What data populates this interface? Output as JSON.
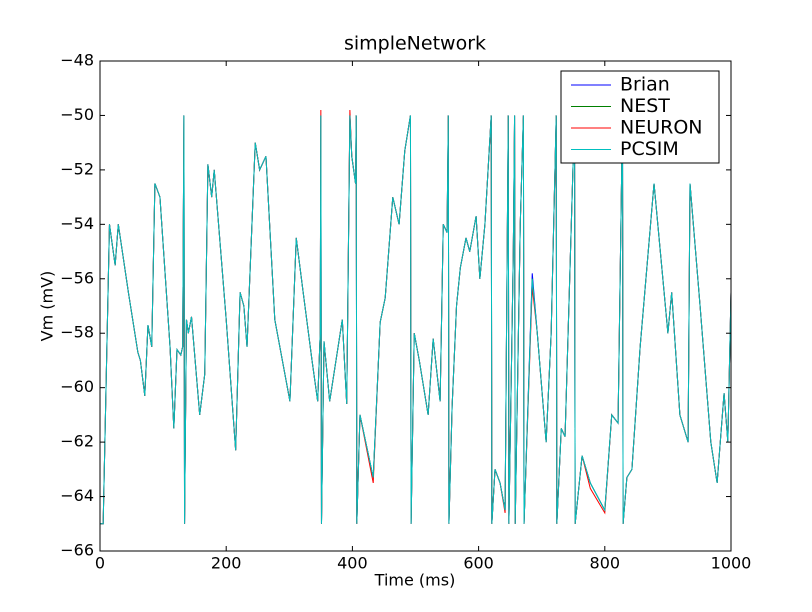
{
  "chart_data": {
    "type": "line",
    "title": "simpleNetwork",
    "x_label": "Time (ms)",
    "y_label": "Vm (mV)",
    "xlim": [
      0,
      1000
    ],
    "ylim": [
      -66,
      -48
    ],
    "xticks": [
      0,
      200,
      400,
      600,
      800,
      1000
    ],
    "yticks": [
      {
        "value": -66,
        "label": "−66"
      },
      {
        "value": -64,
        "label": "−64"
      },
      {
        "value": -62,
        "label": "−62"
      },
      {
        "value": -60,
        "label": "−60"
      },
      {
        "value": -58,
        "label": "−58"
      },
      {
        "value": -56,
        "label": "−56"
      },
      {
        "value": -54,
        "label": "−54"
      },
      {
        "value": -52,
        "label": "−52"
      },
      {
        "value": -50,
        "label": "−50"
      },
      {
        "value": -48,
        "label": "−48"
      }
    ],
    "legend": "upper right",
    "x": [
      0,
      5,
      15,
      24,
      29,
      45,
      60,
      64,
      71,
      76,
      82,
      87,
      95,
      111,
      117,
      122,
      128,
      131,
      133,
      134,
      137,
      140,
      145,
      158,
      166,
      171,
      177,
      181,
      200,
      215,
      222,
      228,
      233,
      246,
      253,
      263,
      277,
      301,
      311,
      322,
      336,
      345,
      349,
      350,
      351,
      355,
      364,
      372,
      384,
      391,
      396,
      399,
      405,
      406,
      407,
      412,
      433,
      444,
      452,
      464,
      474,
      483,
      492,
      493,
      498,
      506,
      520,
      528,
      539,
      544,
      550,
      552,
      553,
      558,
      565,
      571,
      580,
      586,
      596,
      602,
      610,
      620,
      621,
      626,
      634,
      642,
      647,
      648,
      655,
      657,
      658,
      666,
      671,
      672,
      685,
      693,
      707,
      715,
      723,
      724,
      731,
      737,
      752,
      753,
      764,
      777,
      800,
      811,
      821,
      828,
      829,
      835,
      843,
      856,
      878,
      888,
      900,
      906,
      919,
      932,
      935,
      951,
      968,
      978,
      989,
      995,
      1000
    ],
    "series": [
      {
        "name": "Brian",
        "color": "#0000ff",
        "values": [
          -65,
          -65,
          -54,
          -55.5,
          -54,
          -56.5,
          -58.7,
          -59,
          -60.3,
          -57.7,
          -58.5,
          -52.5,
          -53,
          -58.5,
          -61.5,
          -58.6,
          -58.8,
          -58.5,
          -50,
          -65,
          -57.5,
          -58,
          -57.4,
          -61,
          -59.5,
          -51.8,
          -53,
          -52,
          -57.5,
          -62.3,
          -56.5,
          -57,
          -58.5,
          -51,
          -52,
          -51.5,
          -57.5,
          -60.5,
          -54.5,
          -56.5,
          -59,
          -60.5,
          -58,
          -50,
          -65,
          -58.3,
          -60.5,
          -59.3,
          -57.5,
          -60.6,
          -50,
          -51.5,
          -52.5,
          -50,
          -65,
          -61,
          -63.3,
          -57.6,
          -56.7,
          -53,
          -54,
          -51.3,
          -50,
          -65,
          -58,
          -59,
          -61,
          -58.2,
          -60.5,
          -54,
          -54.3,
          -50,
          -65,
          -60.7,
          -57,
          -55.6,
          -54.5,
          -55,
          -53.7,
          -56,
          -54,
          -50,
          -65,
          -63,
          -63.5,
          -64.5,
          -50,
          -65,
          -55,
          -50,
          -65,
          -54,
          -50,
          -65,
          -55.8,
          -58,
          -62,
          -58,
          -50,
          -65,
          -61.5,
          -61.8,
          -50,
          -65,
          -62.5,
          -63.5,
          -64.5,
          -61,
          -61.3,
          -50,
          -65,
          -63.3,
          -63,
          -58.5,
          -52.5,
          -55,
          -58,
          -56.5,
          -61,
          -62,
          -52.5,
          -57,
          -62,
          -63.5,
          -60.2,
          -62,
          -56.5
        ]
      },
      {
        "name": "NEST",
        "color": "#008000",
        "values": [
          -65,
          -65,
          -54,
          -55.5,
          -54,
          -56.5,
          -58.7,
          -59,
          -60.3,
          -57.7,
          -58.5,
          -52.5,
          -53,
          -58.5,
          -61.5,
          -58.6,
          -58.8,
          -58.5,
          -50,
          -65,
          -57.5,
          -58,
          -57.4,
          -61,
          -59.5,
          -51.8,
          -53,
          -52,
          -57.5,
          -62.3,
          -56.5,
          -57,
          -58.5,
          -51,
          -52,
          -51.5,
          -57.5,
          -60.5,
          -54.5,
          -56.5,
          -59,
          -60.5,
          -58,
          -50,
          -65,
          -58.3,
          -60.5,
          -59.3,
          -57.5,
          -60.6,
          -50,
          -51.5,
          -52.5,
          -50,
          -65,
          -61,
          -63.3,
          -57.6,
          -56.7,
          -53,
          -54,
          -51.3,
          -50,
          -65,
          -58,
          -59,
          -61,
          -58.2,
          -60.5,
          -54,
          -54.3,
          -50,
          -65,
          -60.7,
          -57,
          -55.6,
          -54.5,
          -55,
          -53.7,
          -56,
          -54,
          -50,
          -65,
          -63,
          -63.5,
          -64.5,
          -50,
          -65,
          -55,
          -50,
          -65,
          -54,
          -50,
          -65,
          -56,
          -58,
          -62,
          -58,
          -50,
          -65,
          -61.5,
          -61.8,
          -50,
          -65,
          -62.5,
          -63.5,
          -64.5,
          -61,
          -61.3,
          -50,
          -65,
          -63.3,
          -63,
          -58.5,
          -52.5,
          -55,
          -58,
          -56.5,
          -61,
          -62,
          -52.5,
          -57,
          -62,
          -63.5,
          -60.2,
          -62,
          -56.5
        ]
      },
      {
        "name": "NEURON",
        "color": "#ff0000",
        "values": [
          -65,
          -65,
          -54,
          -55.5,
          -54,
          -56.5,
          -58.7,
          -59,
          -60.3,
          -57.7,
          -58.5,
          -52.5,
          -53,
          -58.5,
          -61.5,
          -58.6,
          -58.8,
          -58.5,
          -50,
          -65,
          -57.5,
          -58,
          -57.4,
          -61,
          -59.5,
          -51.8,
          -53,
          -52,
          -57.5,
          -62.3,
          -56.5,
          -57,
          -58.5,
          -51,
          -52,
          -51.5,
          -57.5,
          -60.5,
          -54.5,
          -56.5,
          -59,
          -60.5,
          -58,
          -49.8,
          -65,
          -58.3,
          -60.5,
          -59.3,
          -57.5,
          -60.6,
          -49.8,
          -51.5,
          -52.5,
          -50,
          -65,
          -61,
          -63.5,
          -57.6,
          -56.7,
          -53,
          -54,
          -51.3,
          -50,
          -65,
          -58,
          -59,
          -61,
          -58.2,
          -60.5,
          -54,
          -54.3,
          -50,
          -65,
          -60.7,
          -57,
          -55.6,
          -54.5,
          -55,
          -53.7,
          -56,
          -54,
          -50,
          -65,
          -63,
          -63.5,
          -64.6,
          -50,
          -65,
          -55,
          -50,
          -65,
          -54,
          -50,
          -65,
          -56.3,
          -58,
          -62,
          -58,
          -50,
          -65,
          -61.5,
          -61.8,
          -50,
          -65,
          -62.5,
          -63.7,
          -64.6,
          -61,
          -61.3,
          -50,
          -65,
          -63.3,
          -63,
          -58.5,
          -52.5,
          -55,
          -58,
          -56.5,
          -61,
          -62,
          -52.5,
          -57,
          -62,
          -63.5,
          -60.2,
          -62,
          -56.5
        ]
      },
      {
        "name": "PCSIM",
        "color": "#00bfbf",
        "values": [
          -65,
          -65,
          -54,
          -55.5,
          -54,
          -56.5,
          -58.7,
          -59,
          -60.3,
          -57.7,
          -58.5,
          -52.5,
          -53,
          -58.5,
          -61.5,
          -58.6,
          -58.8,
          -58.5,
          -50,
          -65,
          -57.5,
          -58,
          -57.4,
          -61,
          -59.5,
          -51.8,
          -53,
          -52,
          -57.5,
          -62.3,
          -56.5,
          -57,
          -58.5,
          -51,
          -52,
          -51.5,
          -57.5,
          -60.5,
          -54.5,
          -56.5,
          -59,
          -60.5,
          -58,
          -50,
          -65,
          -58.3,
          -60.5,
          -59.3,
          -57.5,
          -60.6,
          -50,
          -51.5,
          -52.5,
          -50,
          -65,
          -61,
          -63.3,
          -57.6,
          -56.7,
          -53,
          -54,
          -51.3,
          -50,
          -65,
          -58,
          -59,
          -61,
          -58.2,
          -60.5,
          -54,
          -54.3,
          -50,
          -65,
          -60.7,
          -57,
          -55.6,
          -54.5,
          -55,
          -53.7,
          -56,
          -54,
          -50,
          -65,
          -63,
          -63.5,
          -64.5,
          -50,
          -65,
          -55,
          -50,
          -65,
          -54,
          -50,
          -65,
          -56,
          -58,
          -62,
          -58,
          -50,
          -65,
          -61.5,
          -61.8,
          -50,
          -65,
          -62.5,
          -63.5,
          -64.5,
          -61,
          -61.3,
          -50,
          -65,
          -63.3,
          -63,
          -58.5,
          -52.5,
          -55,
          -58,
          -56.5,
          -61,
          -62,
          -52.5,
          -57,
          -62,
          -63.5,
          -60.2,
          -62,
          -56.5
        ]
      }
    ]
  }
}
